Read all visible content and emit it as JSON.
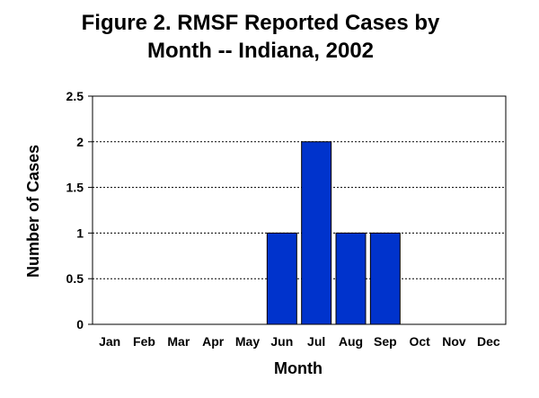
{
  "chart_data": {
    "type": "bar",
    "title_lines": [
      "Figure 2. RMSF Reported Cases by",
      "Month -- Indiana, 2002"
    ],
    "xlabel": "Month",
    "ylabel": "Number of Cases",
    "categories": [
      "Jan",
      "Feb",
      "Mar",
      "Apr",
      "May",
      "Jun",
      "Jul",
      "Aug",
      "Sep",
      "Oct",
      "Nov",
      "Dec"
    ],
    "values": [
      0,
      0,
      0,
      0,
      0,
      1,
      2,
      1,
      1,
      0,
      0,
      0
    ],
    "ylim": [
      0,
      2.5
    ],
    "yticks": [
      "0",
      "0.5",
      "1",
      "1.5",
      "2",
      "2.5"
    ],
    "grid": "horizontal dashed",
    "bar_color": "#0033cc",
    "legend": "none"
  }
}
